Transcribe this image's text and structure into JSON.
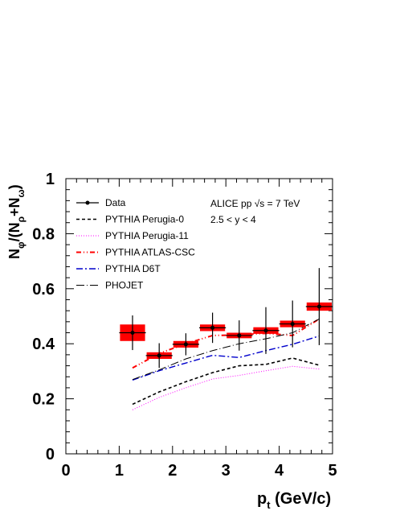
{
  "chart_data": {
    "type": "scatter",
    "title": "",
    "xlabel": "p_t (GeV/c)",
    "ylabel": "N_φ/(N_ρ+N_ω)",
    "xlim": [
      0,
      5
    ],
    "ylim": [
      0,
      1
    ],
    "x_ticks": [
      "0",
      "1",
      "2",
      "3",
      "4",
      "5"
    ],
    "y_ticks": [
      "0",
      "0.2",
      "0.4",
      "0.6",
      "0.8",
      "1"
    ],
    "annotations": [
      "ALICE pp  √s = 7 TeV",
      "2.5 < y < 4"
    ],
    "legend_position": "top-left",
    "data": {
      "name": "Data",
      "color": "#000000",
      "syst_color": "#ff0000",
      "points": [
        {
          "x": 1.25,
          "xerr": 0.25,
          "y": 0.44,
          "stat": 0.063,
          "syst": 0.03
        },
        {
          "x": 1.75,
          "xerr": 0.25,
          "y": 0.357,
          "stat": 0.045,
          "syst": 0.012
        },
        {
          "x": 2.25,
          "xerr": 0.25,
          "y": 0.398,
          "stat": 0.04,
          "syst": 0.012
        },
        {
          "x": 2.75,
          "xerr": 0.25,
          "y": 0.458,
          "stat": 0.055,
          "syst": 0.012
        },
        {
          "x": 3.25,
          "xerr": 0.25,
          "y": 0.43,
          "stat": 0.055,
          "syst": 0.01
        },
        {
          "x": 3.75,
          "xerr": 0.25,
          "y": 0.448,
          "stat": 0.085,
          "syst": 0.012
        },
        {
          "x": 4.25,
          "xerr": 0.25,
          "y": 0.472,
          "stat": 0.085,
          "syst": 0.012
        },
        {
          "x": 4.75,
          "xerr": 0.25,
          "y": 0.535,
          "stat": 0.14,
          "syst": 0.015
        }
      ]
    },
    "series": [
      {
        "name": "PYTHIA Perugia-0",
        "color": "#000000",
        "style": "dashed",
        "x": [
          1.25,
          1.75,
          2.25,
          2.75,
          3.25,
          3.75,
          4.25,
          4.75
        ],
        "values": [
          0.18,
          0.225,
          0.262,
          0.295,
          0.32,
          0.325,
          0.348,
          0.322
        ]
      },
      {
        "name": "PYTHIA Perugia-11",
        "color": "#ff00ff",
        "style": "dotted",
        "x": [
          1.25,
          1.75,
          2.25,
          2.75,
          3.25,
          3.75,
          4.25,
          4.75
        ],
        "values": [
          0.16,
          0.205,
          0.24,
          0.272,
          0.285,
          0.302,
          0.318,
          0.308
        ]
      },
      {
        "name": "PYTHIA ATLAS-CSC",
        "color": "#ff0000",
        "style": "dashdotdot",
        "x": [
          1.25,
          1.75,
          2.25,
          2.75,
          3.25,
          3.75,
          4.25,
          4.75
        ],
        "values": [
          0.312,
          0.365,
          0.4,
          0.43,
          0.432,
          0.438,
          0.43,
          0.49
        ]
      },
      {
        "name": "PYTHIA D6T",
        "color": "#0000cc",
        "style": "dashdot",
        "x": [
          1.25,
          1.75,
          2.25,
          2.75,
          3.25,
          3.75,
          4.25,
          4.75
        ],
        "values": [
          0.268,
          0.302,
          0.33,
          0.358,
          0.35,
          0.375,
          0.398,
          0.428
        ]
      },
      {
        "name": "PHOJET",
        "color": "#000000",
        "style": "longdashdot",
        "x": [
          1.25,
          1.75,
          2.25,
          2.75,
          3.25,
          3.75,
          4.25,
          4.75
        ],
        "values": [
          0.27,
          0.305,
          0.345,
          0.375,
          0.4,
          0.418,
          0.44,
          0.49
        ]
      }
    ]
  }
}
